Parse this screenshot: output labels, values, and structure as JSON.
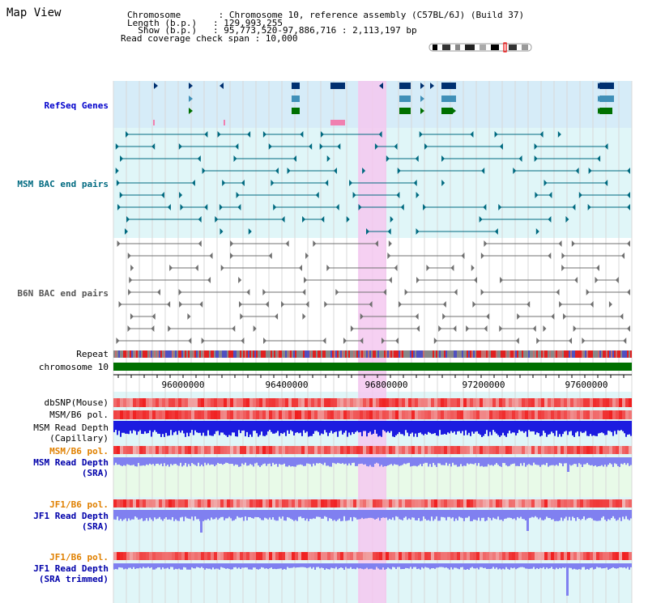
{
  "page": {
    "title": "Map View"
  },
  "header": {
    "chromosome": "Chromosome       : Chromosome 10, reference assembly (C57BL/6J) (Build 37)",
    "length": "Length (b.p.)   : 129,993,255",
    "show": "  Show (b.p.)   : 95,773,520-97,886,716 : 2,113,197 bp",
    "coverage": "Read coverage check span : 10,000"
  },
  "tracks": {
    "refseq": "RefSeq Genes",
    "msm_bac": "MSM BAC end pairs",
    "b6n_bac": "B6N BAC end pairs",
    "repeat": "Repeat",
    "chromosome": "chromosome 10",
    "dbsnp": "dbSNP(Mouse)",
    "msm_b6_pol": "MSM/B6 pol.",
    "msm_depth_cap_1": "MSM Read Depth",
    "msm_depth_cap_2": "(Capillary)",
    "msm_b6_pol2": "MSM/B6 pol.",
    "msm_depth_sra_1": "MSM Read Depth",
    "msm_depth_sra_2": "(SRA)",
    "jf1_b6_pol": "JF1/B6 pol.",
    "jf1_depth_sra_1": "JF1 Read Depth",
    "jf1_depth_sra_2": "(SRA)",
    "jf1_b6_pol2": "JF1/B6 pol.",
    "jf1_depth_trim_1": "JF1 Read Depth",
    "jf1_depth_trim_2": "(SRA trimmed)"
  },
  "axis": {
    "ticks": [
      "96000000",
      "96400000",
      "96800000",
      "97200000",
      "97600000"
    ]
  },
  "colors": {
    "highlight": "#f4c8f0",
    "refseq_bg": "#d6ecf8",
    "msm_bg": "#e0f6f8",
    "chromosome_bar": "#007000",
    "refseq_navy": "#003070",
    "refseq_teal": "#4090b8",
    "refseq_green": "#007000",
    "depth_blue": "#1c1ce0",
    "depth_light": "#8080f0",
    "pol_red": "#f04040"
  }
}
